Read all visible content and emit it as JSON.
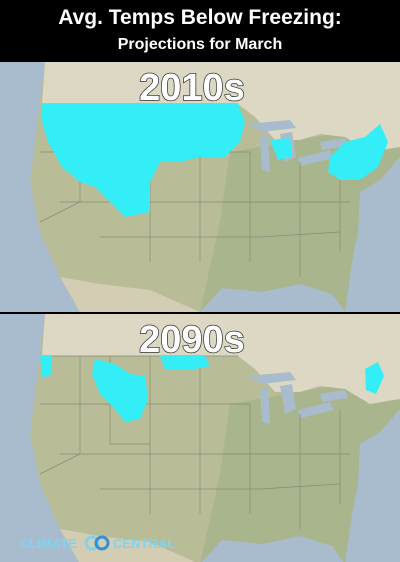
{
  "header": {
    "title": "Avg. Temps Below Freezing:",
    "subtitle": "Projections for March"
  },
  "maps": [
    {
      "label": "2010s"
    },
    {
      "label": "2090s"
    }
  ],
  "logo": {
    "left": "CLIMATE",
    "right": "CENTRAL"
  }
}
